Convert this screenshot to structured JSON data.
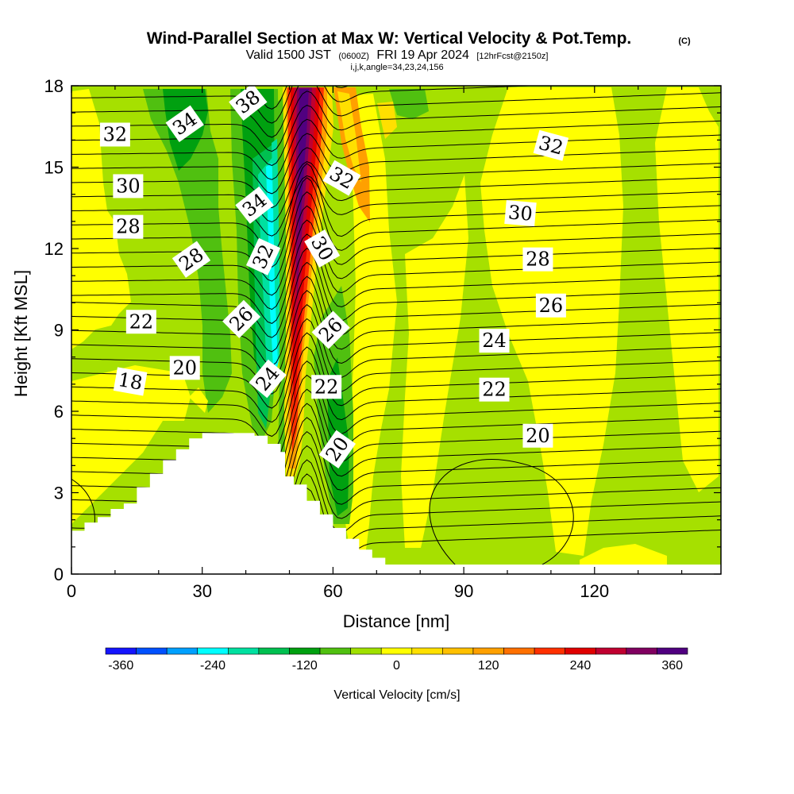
{
  "chart_data": {
    "type": "heatmap",
    "title": "Wind-Parallel Section at Max W: Vertical Velocity & Pot.Temp.",
    "copyright": "(C)",
    "subtitle": {
      "valid": "Valid 1500 JST",
      "utc": "(0600Z)",
      "date": "FRI 19 Apr 2024",
      "forecast": "[12hrFcst@2150z]"
    },
    "indices": "i,j,k,angle=34,23,24,156",
    "xlabel": "Distance [nm]",
    "ylabel": "Height [Kft MSL]",
    "xlim": [
      0,
      149
    ],
    "ylim": [
      0,
      18
    ],
    "xticks": [
      0,
      30,
      60,
      90,
      120
    ],
    "yticks": [
      0,
      3,
      6,
      9,
      12,
      15,
      18
    ],
    "shaded_variable": "Vertical velocity (cm/s)",
    "contour_variable": "Potential temperature",
    "colorbar": {
      "label": "Vertical Velocity [cm/s]",
      "min": -380,
      "max": 380,
      "step": 40,
      "ticks": [
        -360,
        -240,
        -120,
        0,
        120,
        240,
        360
      ],
      "colors": [
        "#1414ff",
        "#0050ff",
        "#00a0ff",
        "#00ffff",
        "#00e0a0",
        "#00c050",
        "#00a010",
        "#50c010",
        "#a0e000",
        "#ffff00",
        "#ffe000",
        "#ffc000",
        "#ffa000",
        "#ff7000",
        "#ff3000",
        "#e00000",
        "#c00030",
        "#800060",
        "#500080"
      ]
    },
    "terrain_profile": {
      "distance": [
        0,
        3,
        6,
        9,
        12,
        15,
        18,
        21,
        24,
        27,
        30,
        33,
        36,
        39,
        42,
        45,
        48,
        49,
        51,
        54,
        57,
        60,
        63,
        66,
        69,
        72,
        149
      ],
      "height": [
        1.6,
        1.9,
        2.1,
        2.4,
        2.6,
        3.2,
        3.7,
        4.2,
        4.6,
        5.0,
        5.2,
        5.2,
        5.2,
        5.2,
        5.1,
        4.8,
        4.5,
        3.6,
        3.3,
        2.7,
        2.2,
        1.7,
        1.3,
        0.9,
        0.6,
        0.35,
        0.35
      ]
    },
    "contour_labels": [
      {
        "text": "32",
        "x": 10,
        "y": 16.2,
        "angle": 0
      },
      {
        "text": "34",
        "x": 26,
        "y": 16.6,
        "angle": 35
      },
      {
        "text": "38",
        "x": 40.5,
        "y": 17.4,
        "angle": 38
      },
      {
        "text": "30",
        "x": 13,
        "y": 14.3,
        "angle": 0
      },
      {
        "text": "34",
        "x": 42,
        "y": 13.6,
        "angle": 38
      },
      {
        "text": "32",
        "x": 62,
        "y": 14.6,
        "angle": -30
      },
      {
        "text": "32",
        "x": 110,
        "y": 15.8,
        "angle": -15
      },
      {
        "text": "28",
        "x": 13,
        "y": 12.8,
        "angle": 0
      },
      {
        "text": "30",
        "x": 103,
        "y": 13.3,
        "angle": -5
      },
      {
        "text": "28",
        "x": 27.5,
        "y": 11.6,
        "angle": 35
      },
      {
        "text": "32",
        "x": 44,
        "y": 11.7,
        "angle": 65
      },
      {
        "text": "30",
        "x": 57.5,
        "y": 12.0,
        "angle": -60
      },
      {
        "text": "28",
        "x": 107,
        "y": 11.6,
        "angle": 0
      },
      {
        "text": "26",
        "x": 110,
        "y": 9.9,
        "angle": 0
      },
      {
        "text": "22",
        "x": 16,
        "y": 9.3,
        "angle": 0
      },
      {
        "text": "26",
        "x": 39,
        "y": 9.4,
        "angle": 45
      },
      {
        "text": "26",
        "x": 59.5,
        "y": 9.0,
        "angle": 45
      },
      {
        "text": "24",
        "x": 97,
        "y": 8.6,
        "angle": 0
      },
      {
        "text": "20",
        "x": 26,
        "y": 7.6,
        "angle": 0
      },
      {
        "text": "18",
        "x": 13.5,
        "y": 7.1,
        "angle": -10
      },
      {
        "text": "24",
        "x": 45,
        "y": 7.2,
        "angle": 50
      },
      {
        "text": "22",
        "x": 58.5,
        "y": 6.9,
        "angle": 0
      },
      {
        "text": "22",
        "x": 97,
        "y": 6.8,
        "angle": 0
      },
      {
        "text": "20",
        "x": 61,
        "y": 4.6,
        "angle": 55
      },
      {
        "text": "20",
        "x": 107,
        "y": 5.1,
        "angle": 0
      }
    ]
  }
}
